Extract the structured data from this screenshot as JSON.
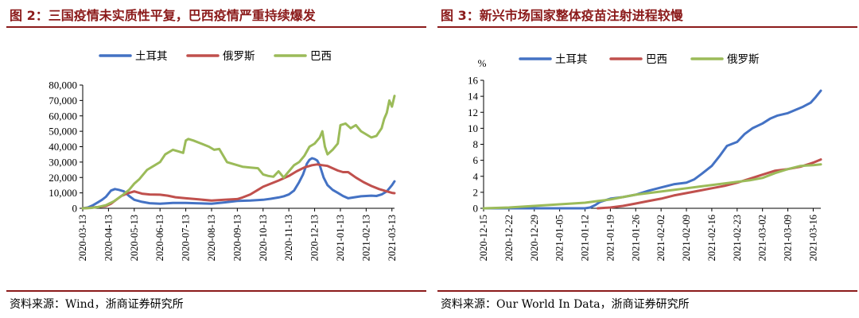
{
  "charts": [
    {
      "figure_title": "图 2：三国疫情未实质性平复，巴西疫情严重持续爆发",
      "source": "资料来源：Wind，浙商证券研究所"
    },
    {
      "figure_title": "图 3：新兴市场国家整体疫苗注射进程较慢",
      "source": "资料来源：Our World In Data，浙商证券研究所"
    }
  ],
  "colors": {
    "turkey": "#4472C4",
    "russia": "#C0504D",
    "brazil": "#9BBB59",
    "accent": "#8B1A1A"
  },
  "chart_data": [
    {
      "type": "line",
      "title": "图 2：三国疫情未实质性平复，巴西疫情严重持续爆发",
      "xlabel": "",
      "ylabel": "",
      "ylim": [
        0,
        80000
      ],
      "yticks": [
        "0",
        "10,000",
        "20,000",
        "30,000",
        "40,000",
        "50,000",
        "60,000",
        "70,000",
        "80,000"
      ],
      "xticks": [
        "2020-03-13",
        "2020-04-13",
        "2020-05-13",
        "2020-06-13",
        "2020-07-13",
        "2020-08-13",
        "2020-09-13",
        "2020-10-13",
        "2020-11-13",
        "2020-12-13",
        "2021-01-13",
        "2021-02-13",
        "2021-03-13"
      ],
      "xlim": [
        0,
        12.1
      ],
      "legend": "top-center",
      "series": [
        {
          "name": "土耳其",
          "color": "#4472C4",
          "x": [
            0,
            0.2,
            0.4,
            0.6,
            0.75,
            0.9,
            1.0,
            1.1,
            1.25,
            1.4,
            1.6,
            1.8,
            2.0,
            2.3,
            2.6,
            3.0,
            3.5,
            4.0,
            4.5,
            5.0,
            5.5,
            6.0,
            6.5,
            7.0,
            7.3,
            7.6,
            7.8,
            8.0,
            8.2,
            8.4,
            8.55,
            8.7,
            8.8,
            8.9,
            9.0,
            9.1,
            9.2,
            9.35,
            9.5,
            9.7,
            9.9,
            10.1,
            10.3,
            10.5,
            10.8,
            11.0,
            11.2,
            11.4,
            11.6,
            11.8,
            12.0,
            12.1
          ],
          "y": [
            0,
            500,
            2000,
            4000,
            5500,
            7500,
            9500,
            11500,
            12500,
            12000,
            11000,
            8000,
            5500,
            4200,
            3300,
            3000,
            3500,
            3500,
            3200,
            3000,
            3800,
            4800,
            5000,
            5500,
            6200,
            7000,
            7800,
            9000,
            11500,
            17000,
            22000,
            29000,
            31500,
            32500,
            32000,
            31000,
            28000,
            20000,
            15000,
            12000,
            10000,
            8000,
            6500,
            7000,
            7800,
            8000,
            8200,
            8000,
            9000,
            11000,
            15000,
            17500
          ]
        },
        {
          "name": "俄罗斯",
          "color": "#C0504D",
          "x": [
            0,
            0.3,
            0.6,
            0.9,
            1.1,
            1.3,
            1.5,
            1.7,
            1.9,
            2.0,
            2.1,
            2.3,
            2.6,
            3.0,
            3.3,
            3.6,
            4.0,
            4.5,
            5.0,
            5.5,
            6.0,
            6.2,
            6.5,
            6.8,
            7.0,
            7.3,
            7.6,
            8.0,
            8.3,
            8.6,
            8.9,
            9.1,
            9.3,
            9.5,
            9.7,
            9.9,
            10.1,
            10.3,
            10.6,
            10.9,
            11.2,
            11.5,
            11.8,
            12.0,
            12.1
          ],
          "y": [
            0,
            300,
            800,
            1500,
            3000,
            5500,
            8000,
            9500,
            10500,
            11000,
            10500,
            9500,
            9000,
            8800,
            8200,
            7200,
            6500,
            5800,
            5000,
            5500,
            6000,
            7000,
            9000,
            12000,
            14000,
            16000,
            18000,
            21000,
            24000,
            26500,
            28000,
            28500,
            28000,
            27500,
            26000,
            24500,
            23500,
            23500,
            20000,
            17000,
            14500,
            12500,
            11000,
            10000,
            9800
          ]
        },
        {
          "name": "巴西",
          "color": "#9BBB59",
          "x": [
            0,
            0.3,
            0.6,
            0.9,
            1.2,
            1.5,
            1.8,
            2.0,
            2.2,
            2.5,
            2.8,
            3.0,
            3.2,
            3.5,
            3.7,
            3.9,
            4.0,
            4.1,
            4.3,
            4.6,
            4.9,
            5.1,
            5.3,
            5.6,
            5.9,
            6.2,
            6.5,
            6.8,
            7.0,
            7.2,
            7.4,
            7.6,
            7.8,
            8.0,
            8.2,
            8.4,
            8.6,
            8.8,
            9.0,
            9.1,
            9.2,
            9.3,
            9.4,
            9.5,
            9.7,
            9.9,
            10.0,
            10.2,
            10.4,
            10.6,
            10.8,
            11.0,
            11.2,
            11.4,
            11.6,
            11.7,
            11.8,
            11.9,
            12.0,
            12.1
          ],
          "y": [
            0,
            200,
            800,
            2000,
            4500,
            8000,
            12000,
            16000,
            19000,
            25000,
            28000,
            30000,
            35000,
            38000,
            37000,
            36000,
            44000,
            45000,
            44000,
            42000,
            40000,
            38000,
            38500,
            30000,
            28500,
            27000,
            26500,
            26000,
            22000,
            21000,
            20500,
            24000,
            20000,
            24000,
            28000,
            30000,
            34000,
            40000,
            42000,
            44000,
            46000,
            50000,
            40000,
            35000,
            38000,
            42000,
            54000,
            55000,
            52000,
            54000,
            50000,
            48000,
            46000,
            47000,
            52000,
            58000,
            62000,
            70000,
            66000,
            73000
          ]
        }
      ]
    },
    {
      "type": "line",
      "title": "图 3：新兴市场国家整体疫苗注射进程较慢",
      "xlabel": "",
      "ylabel": "%",
      "ylim": [
        0,
        16
      ],
      "yticks": [
        "0",
        "2",
        "4",
        "6",
        "8",
        "10",
        "12",
        "14",
        "16"
      ],
      "xticks": [
        "2020-12-15",
        "2020-12-22",
        "2020-12-29",
        "2021-01-05",
        "2021-01-12",
        "2021-01-19",
        "2021-01-26",
        "2021-02-02",
        "2021-02-09",
        "2021-02-16",
        "2021-02-23",
        "2021-03-02",
        "2021-03-09",
        "2021-03-16"
      ],
      "xlim": [
        0,
        13.3
      ],
      "legend": "top-center",
      "series": [
        {
          "name": "土耳其",
          "color": "#4472C4",
          "x": [
            0,
            1,
            2,
            3,
            4,
            4.2,
            4.4,
            4.6,
            5,
            5.5,
            6,
            6.5,
            7,
            7.5,
            8,
            8.3,
            8.6,
            9,
            9.3,
            9.6,
            10,
            10.3,
            10.6,
            11,
            11.3,
            11.6,
            12,
            12.3,
            12.6,
            12.9,
            13.1,
            13.3
          ],
          "y": [
            0,
            0,
            0,
            0,
            0,
            0.1,
            0.4,
            0.8,
            1.2,
            1.4,
            1.7,
            2.2,
            2.6,
            3.0,
            3.2,
            3.6,
            4.3,
            5.3,
            6.5,
            7.8,
            8.3,
            9.3,
            10.0,
            10.6,
            11.2,
            11.6,
            11.9,
            12.3,
            12.7,
            13.2,
            13.9,
            14.7
          ]
        },
        {
          "name": "巴西",
          "color": "#C0504D",
          "x": [
            4.5,
            5,
            5.5,
            6,
            6.5,
            7,
            7.5,
            8,
            8.5,
            9,
            9.5,
            10,
            10.5,
            11,
            11.5,
            12,
            12.5,
            13,
            13.3
          ],
          "y": [
            0,
            0.1,
            0.3,
            0.6,
            0.9,
            1.2,
            1.6,
            1.9,
            2.2,
            2.5,
            2.8,
            3.2,
            3.7,
            4.2,
            4.7,
            4.9,
            5.2,
            5.7,
            6.1
          ]
        },
        {
          "name": "俄罗斯",
          "color": "#9BBB59",
          "x": [
            0,
            1,
            2,
            3,
            4,
            4.5,
            5,
            5.5,
            6,
            6.5,
            7,
            7.5,
            8,
            8.5,
            9,
            9.5,
            10,
            10.5,
            11,
            11.5,
            12,
            12.5,
            13,
            13.3
          ],
          "y": [
            0,
            0.1,
            0.3,
            0.5,
            0.7,
            0.9,
            1.1,
            1.4,
            1.7,
            1.9,
            2.1,
            2.3,
            2.5,
            2.7,
            2.9,
            3.1,
            3.3,
            3.5,
            3.8,
            4.4,
            4.9,
            5.3,
            5.4,
            5.5
          ]
        }
      ]
    }
  ]
}
